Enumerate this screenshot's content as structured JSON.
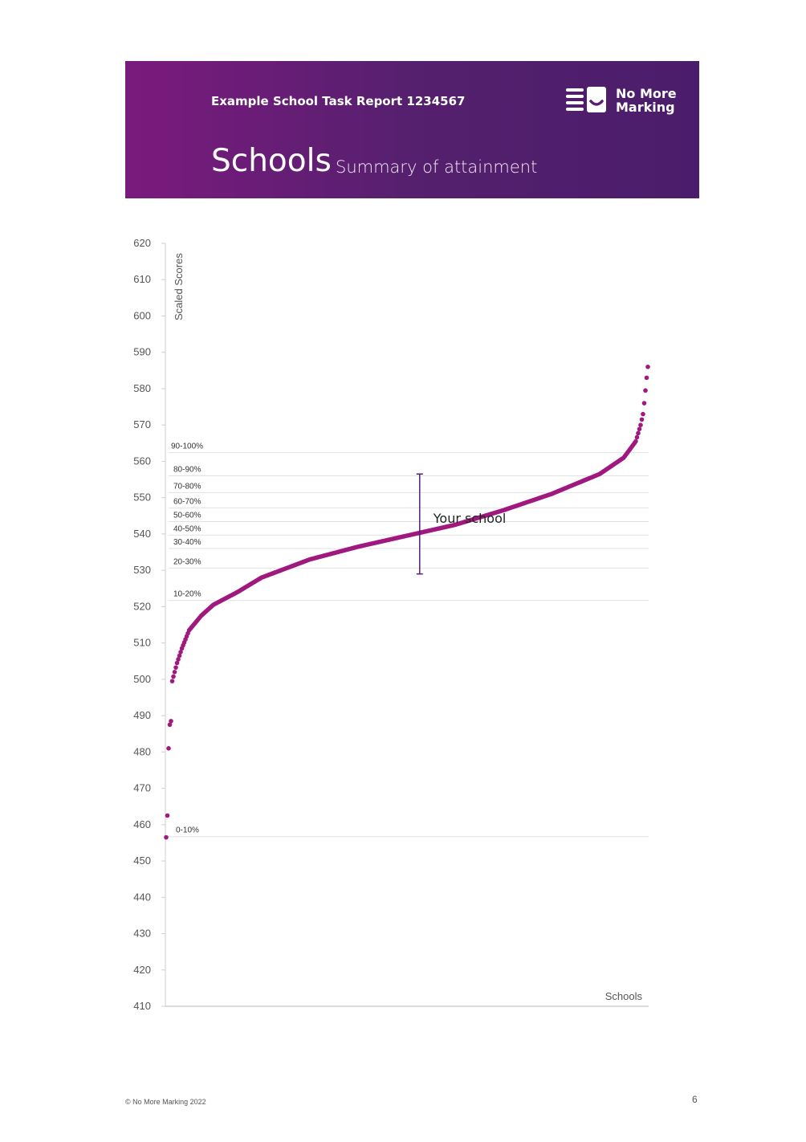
{
  "header": {
    "report_title": "Example School Task Report 1234567",
    "section_title": "Schools",
    "section_subtitle": "Summary of attainment",
    "logo_line1": "No More",
    "logo_line2": "Marking",
    "logo_icon": "no-more-marking-logo-icon",
    "background_colors": [
      "#7b1a7e",
      "#4a1d6a"
    ]
  },
  "footer": {
    "copyright": "© No More Marking 2022",
    "page_number": "6"
  },
  "colors": {
    "series": "#a0197f",
    "marker": "#55206e",
    "band_line": "#e2e2e2",
    "axis": "#cfcfcf",
    "tick_text": "#555555"
  },
  "chart_data": {
    "type": "scatter",
    "ylabel": "Scaled Scores",
    "xlabel": "Schools",
    "ylim": [
      410,
      620
    ],
    "yticks": [
      620,
      610,
      600,
      590,
      580,
      570,
      560,
      550,
      540,
      530,
      520,
      510,
      500,
      490,
      480,
      470,
      460,
      450,
      440,
      430,
      420,
      410
    ],
    "grid": false,
    "n_schools": 400,
    "percentile_bands": [
      {
        "label": "90-100%",
        "y": 562.4
      },
      {
        "label": "80-90%",
        "y": 556.0
      },
      {
        "label": "70-80%",
        "y": 551.4
      },
      {
        "label": "60-70%",
        "y": 547.2
      },
      {
        "label": "50-60%",
        "y": 543.4
      },
      {
        "label": "40-50%",
        "y": 539.7
      },
      {
        "label": "30-40%",
        "y": 536.0
      },
      {
        "label": "20-30%",
        "y": 530.6
      },
      {
        "label": "10-20%",
        "y": 521.7
      },
      {
        "label": "0-10%",
        "y": 456.7
      }
    ],
    "series": [
      {
        "profile": [
          [
            1,
            456.5
          ],
          [
            2,
            462.5
          ],
          [
            3,
            481.0
          ],
          [
            4,
            487.5
          ],
          [
            5,
            488.5
          ],
          [
            6,
            499.5
          ],
          [
            8,
            502.0
          ],
          [
            10,
            504.5
          ],
          [
            14,
            508.5
          ],
          [
            20,
            513.5
          ],
          [
            30,
            517.5
          ],
          [
            40,
            520.5
          ],
          [
            60,
            524.0
          ],
          [
            80,
            528.0
          ],
          [
            100,
            530.5
          ],
          [
            120,
            533.0
          ],
          [
            160,
            536.5
          ],
          [
            200,
            539.5
          ],
          [
            240,
            542.5
          ],
          [
            280,
            546.5
          ],
          [
            320,
            551.0
          ],
          [
            360,
            556.5
          ],
          [
            380,
            561.0
          ],
          [
            390,
            565.5
          ],
          [
            394,
            570.0
          ],
          [
            396,
            573.0
          ],
          [
            397,
            576.0
          ],
          [
            398,
            579.5
          ],
          [
            399,
            583.0
          ],
          [
            400,
            586.0
          ]
        ]
      }
    ],
    "highlight": {
      "label": "Your school",
      "x": 211,
      "y": 543.5,
      "range": [
        529.0,
        556.5
      ]
    }
  }
}
